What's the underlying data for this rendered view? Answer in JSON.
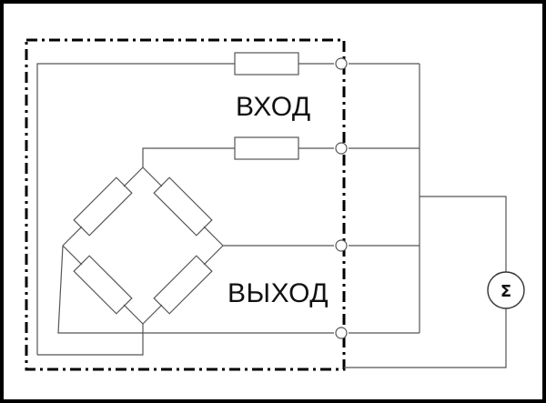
{
  "diagram": {
    "input_label": "ВХОД",
    "output_label": "ВЫХОД",
    "meter_symbol": "Σ"
  }
}
